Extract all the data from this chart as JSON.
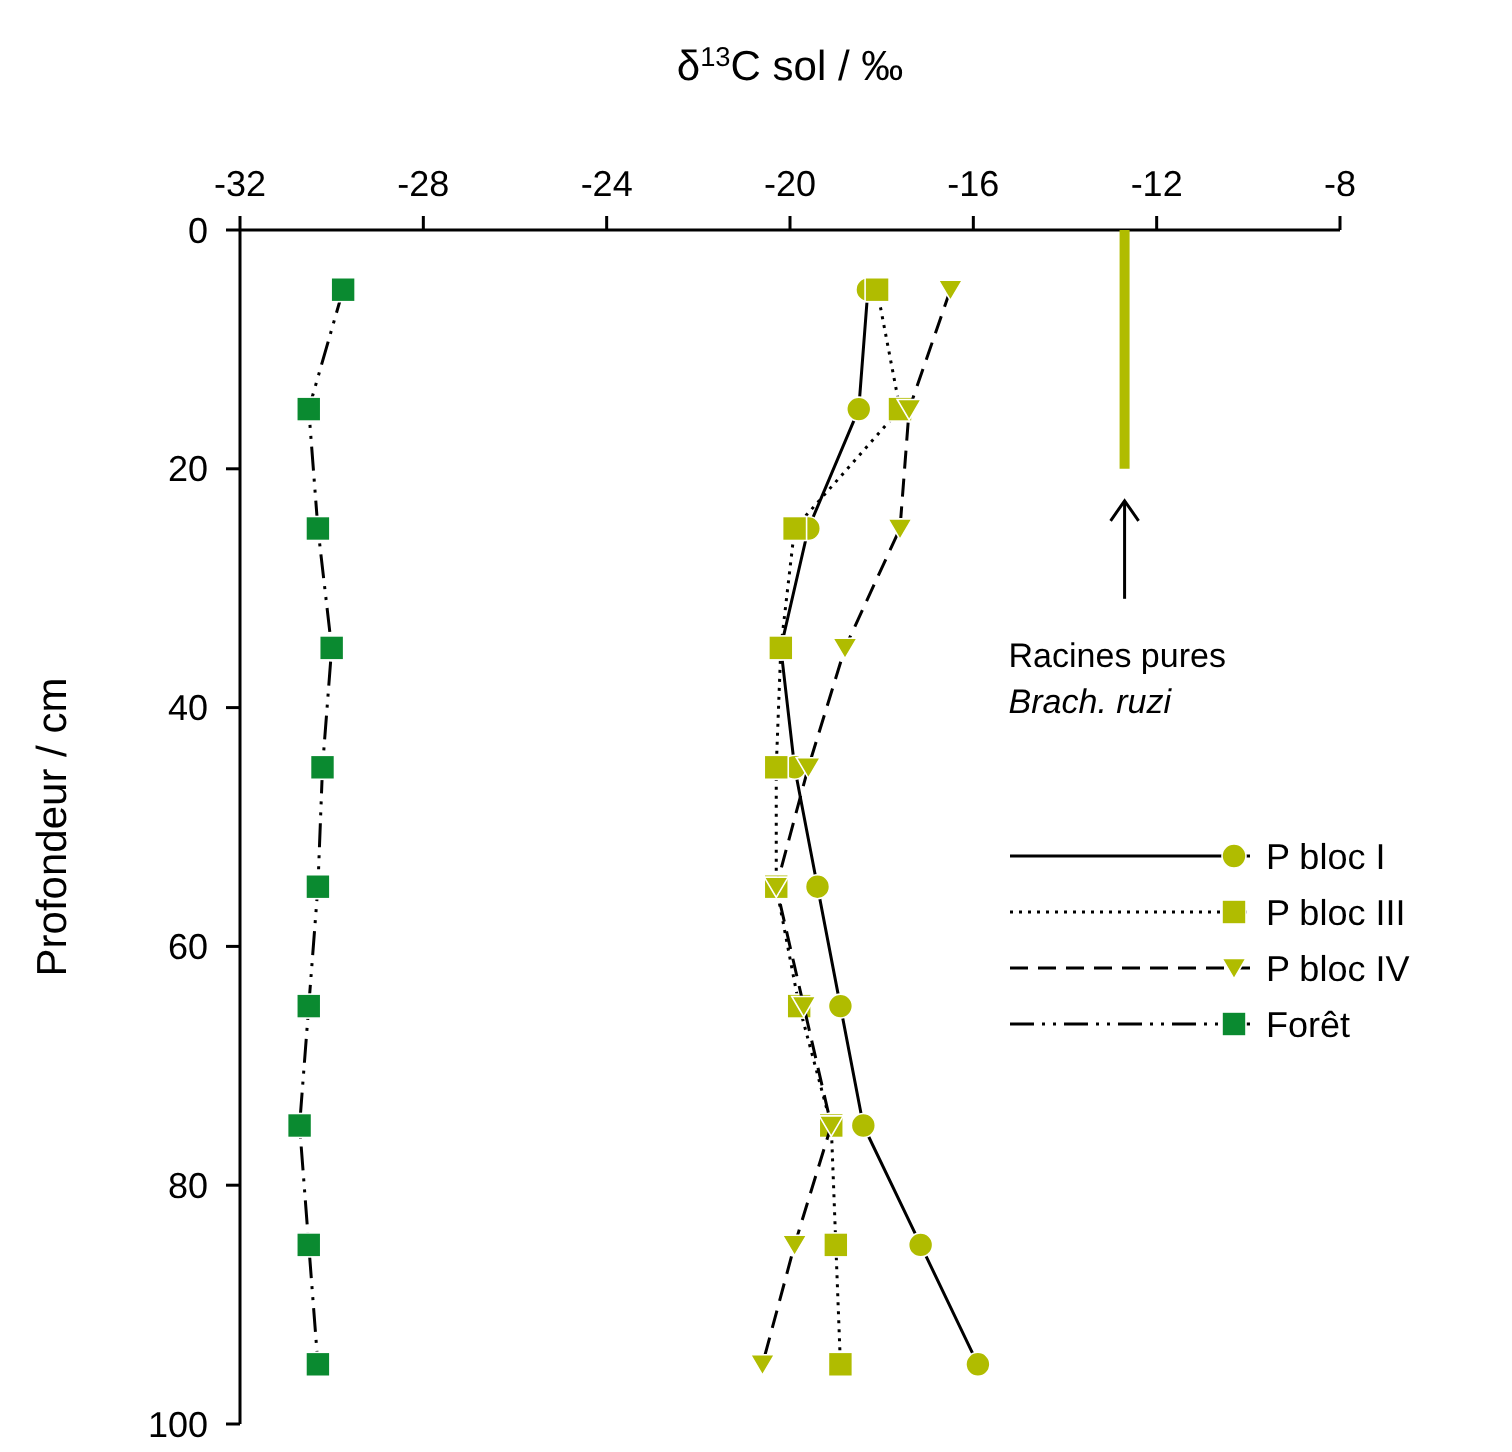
{
  "chart_data": {
    "type": "line",
    "title": "δ$^{13}$C sol / ‰",
    "ylabel": "Profondeur / cm",
    "xlim": [
      -32,
      -8
    ],
    "xticks": [
      -32,
      -28,
      -24,
      -20,
      -16,
      -12,
      -8
    ],
    "ylim": [
      100,
      0
    ],
    "yticks": [
      0,
      20,
      40,
      60,
      80,
      100
    ],
    "grid": false,
    "legend": "right",
    "series": [
      {
        "name": "P bloc I",
        "color": "#b0bc00",
        "marker": "circle",
        "line_style": "solid",
        "x": [
          -18.3,
          -18.5,
          -19.6,
          -20.2,
          -19.9,
          -19.4,
          -18.9,
          -18.4,
          -17.15,
          -15.9
        ],
        "values": [
          5,
          15,
          25,
          35,
          45,
          55,
          65,
          75,
          85,
          95
        ]
      },
      {
        "name": "P bloc III",
        "color": "#b0bc00",
        "marker": "square",
        "line_style": "dotted",
        "x": [
          -18.1,
          -17.6,
          -19.9,
          -20.2,
          -20.3,
          -20.3,
          -19.8,
          -19.1,
          -19.0,
          -18.9
        ],
        "values": [
          5,
          15,
          25,
          35,
          45,
          55,
          65,
          75,
          85,
          95
        ]
      },
      {
        "name": "P bloc IV",
        "color": "#b0bc00",
        "marker": "triangle",
        "line_style": "dashed",
        "x": [
          -16.5,
          -17.4,
          -17.6,
          -18.8,
          -19.6,
          -20.3,
          -19.7,
          -19.1,
          -19.9,
          -20.6
        ],
        "values": [
          5,
          15,
          25,
          35,
          45,
          55,
          65,
          75,
          85,
          95
        ]
      },
      {
        "name": "Forêt",
        "color": "#0a8a30",
        "marker": "square",
        "line_style": "dashdot",
        "x": [
          -29.75,
          -30.5,
          -30.3,
          -30.0,
          -30.2,
          -30.3,
          -30.5,
          -30.7,
          -30.5,
          -30.3
        ],
        "values": [
          5,
          15,
          25,
          35,
          45,
          55,
          65,
          75,
          85,
          95
        ]
      },
      {
        "color": "#b0bc00",
        "marker": "none",
        "line_style": "solid",
        "x": [
          -12.7,
          -12.7
        ],
        "values": [
          0,
          20
        ]
      }
    ],
    "annotations": [
      "Racines pures\nBrach. ruzi"
    ]
  }
}
